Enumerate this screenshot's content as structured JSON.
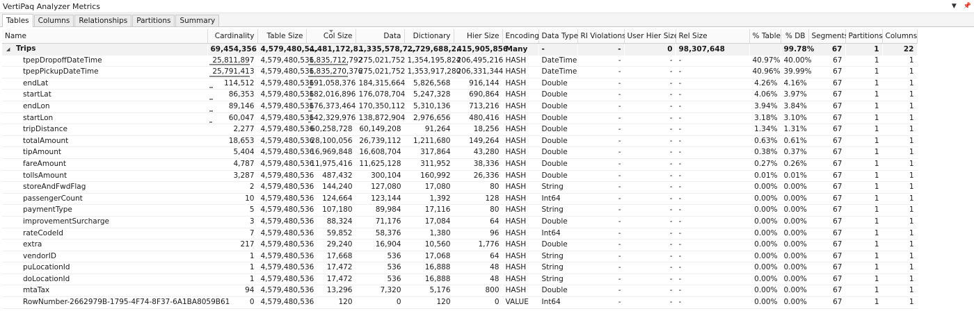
{
  "window": {
    "title": "VertiPaq Analyzer Metrics"
  },
  "tabs": [
    {
      "label": "Tables"
    },
    {
      "label": "Columns"
    },
    {
      "label": "Relationships"
    },
    {
      "label": "Partitions"
    },
    {
      "label": "Summary"
    }
  ],
  "columns": [
    {
      "label": "Name"
    },
    {
      "label": "Cardinality"
    },
    {
      "label": "Table Size"
    },
    {
      "label": "Col Size"
    },
    {
      "label": "Data"
    },
    {
      "label": "Dictionary"
    },
    {
      "label": "Hier Size"
    },
    {
      "label": "Encoding"
    },
    {
      "label": "Data Type"
    },
    {
      "label": "RI Violations"
    },
    {
      "label": "User Hier Size"
    },
    {
      "label": "Rel Size"
    },
    {
      "label": "% Table"
    },
    {
      "label": "% DB"
    },
    {
      "label": "Segments"
    },
    {
      "label": "Partitions"
    },
    {
      "label": "Columns"
    }
  ],
  "group": {
    "toggle": "◢",
    "cells": [
      "Trips",
      "69,454,356",
      "4,579,480,5...",
      "4,481,172,8...",
      "1,335,578,7...",
      "2,729,688,2...",
      "415,905,856",
      "Many",
      "-",
      "-",
      "0",
      "98,307,648",
      "",
      "99.78%",
      "67",
      "1",
      "22"
    ]
  },
  "rows": [
    {
      "cells": [
        "tpepDropoffDateTime",
        "25,811,897",
        "4,579,480,536",
        "1,835,712,792",
        "275,021,752",
        "1,354,195,824",
        "206,495,216",
        "HASH",
        "DateTime",
        "-",
        "-",
        "-",
        "40.97%",
        "40.00%",
        "67",
        "1",
        "1"
      ],
      "bar": 0.41
    },
    {
      "cells": [
        "tpepPickupDateTime",
        "25,791,413",
        "4,579,480,536",
        "1,835,270,376",
        "275,021,752",
        "1,353,917,280",
        "206,331,344",
        "HASH",
        "DateTime",
        "-",
        "-",
        "-",
        "40.96%",
        "39.99%",
        "67",
        "1",
        "1"
      ],
      "bar": 0.41
    },
    {
      "cells": [
        "endLat",
        "114,512",
        "4,579,480,536",
        "191,058,376",
        "184,315,664",
        "5,826,568",
        "916,144",
        "HASH",
        "Double",
        "-",
        "-",
        "-",
        "4.26%",
        "4.16%",
        "67",
        "1",
        "1"
      ],
      "bar": 0.04
    },
    {
      "cells": [
        "startLat",
        "86,353",
        "4,579,480,536",
        "182,016,896",
        "176,078,704",
        "5,247,328",
        "690,864",
        "HASH",
        "Double",
        "-",
        "-",
        "-",
        "4.06%",
        "3.97%",
        "67",
        "1",
        "1"
      ],
      "bar": 0.04
    },
    {
      "cells": [
        "endLon",
        "89,146",
        "4,579,480,536",
        "176,373,464",
        "170,350,112",
        "5,310,136",
        "713,216",
        "HASH",
        "Double",
        "-",
        "-",
        "-",
        "3.94%",
        "3.84%",
        "67",
        "1",
        "1"
      ],
      "bar": 0.04
    },
    {
      "cells": [
        "startLon",
        "60,047",
        "4,579,480,536",
        "142,329,976",
        "138,872,904",
        "2,976,656",
        "480,416",
        "HASH",
        "Double",
        "-",
        "-",
        "-",
        "3.18%",
        "3.10%",
        "67",
        "1",
        "1"
      ],
      "bar": 0.03
    },
    {
      "cells": [
        "tripDistance",
        "2,277",
        "4,579,480,536",
        "60,258,728",
        "60,149,208",
        "91,264",
        "18,256",
        "HASH",
        "Double",
        "-",
        "-",
        "-",
        "1.34%",
        "1.31%",
        "67",
        "1",
        "1"
      ],
      "bar": 0.01
    },
    {
      "cells": [
        "totalAmount",
        "18,653",
        "4,579,480,536",
        "28,100,056",
        "26,739,112",
        "1,211,680",
        "149,264",
        "HASH",
        "Double",
        "-",
        "-",
        "-",
        "0.63%",
        "0.61%",
        "67",
        "1",
        "1"
      ],
      "bar": 0
    },
    {
      "cells": [
        "tipAmount",
        "5,404",
        "4,579,480,536",
        "16,969,848",
        "16,608,704",
        "317,864",
        "43,280",
        "HASH",
        "Double",
        "-",
        "-",
        "-",
        "0.38%",
        "0.37%",
        "67",
        "1",
        "1"
      ],
      "bar": 0
    },
    {
      "cells": [
        "fareAmount",
        "4,787",
        "4,579,480,536",
        "11,975,416",
        "11,625,128",
        "311,952",
        "38,336",
        "HASH",
        "Double",
        "-",
        "-",
        "-",
        "0.27%",
        "0.26%",
        "67",
        "1",
        "1"
      ],
      "bar": 0
    },
    {
      "cells": [
        "tollsAmount",
        "3,287",
        "4,579,480,536",
        "487,432",
        "300,104",
        "160,992",
        "26,336",
        "HASH",
        "Double",
        "-",
        "-",
        "-",
        "0.01%",
        "0.01%",
        "67",
        "1",
        "1"
      ],
      "bar": 0
    },
    {
      "cells": [
        "storeAndFwdFlag",
        "2",
        "4,579,480,536",
        "144,240",
        "127,080",
        "17,080",
        "80",
        "HASH",
        "String",
        "-",
        "-",
        "-",
        "0.00%",
        "0.00%",
        "67",
        "1",
        "1"
      ],
      "bar": 0
    },
    {
      "cells": [
        "passengerCount",
        "10",
        "4,579,480,536",
        "124,664",
        "123,144",
        "1,392",
        "128",
        "HASH",
        "Int64",
        "-",
        "-",
        "-",
        "0.00%",
        "0.00%",
        "67",
        "1",
        "1"
      ],
      "bar": 0
    },
    {
      "cells": [
        "paymentType",
        "5",
        "4,579,480,536",
        "107,180",
        "89,984",
        "17,116",
        "80",
        "HASH",
        "String",
        "-",
        "-",
        "-",
        "0.00%",
        "0.00%",
        "67",
        "1",
        "1"
      ],
      "bar": 0
    },
    {
      "cells": [
        "improvementSurcharge",
        "3",
        "4,579,480,536",
        "88,324",
        "71,176",
        "17,084",
        "64",
        "HASH",
        "Double",
        "-",
        "-",
        "-",
        "0.00%",
        "0.00%",
        "67",
        "1",
        "1"
      ],
      "bar": 0
    },
    {
      "cells": [
        "rateCodeId",
        "7",
        "4,579,480,536",
        "59,852",
        "58,376",
        "1,380",
        "96",
        "HASH",
        "Int64",
        "-",
        "-",
        "-",
        "0.00%",
        "0.00%",
        "67",
        "1",
        "1"
      ],
      "bar": 0
    },
    {
      "cells": [
        "extra",
        "217",
        "4,579,480,536",
        "29,240",
        "16,904",
        "10,560",
        "1,776",
        "HASH",
        "Double",
        "-",
        "-",
        "-",
        "0.00%",
        "0.00%",
        "67",
        "1",
        "1"
      ],
      "bar": 0
    },
    {
      "cells": [
        "vendorID",
        "1",
        "4,579,480,536",
        "17,668",
        "536",
        "17,068",
        "64",
        "HASH",
        "String",
        "-",
        "-",
        "-",
        "0.00%",
        "0.00%",
        "67",
        "1",
        "1"
      ],
      "bar": 0
    },
    {
      "cells": [
        "puLocationId",
        "1",
        "4,579,480,536",
        "17,472",
        "536",
        "16,888",
        "48",
        "HASH",
        "String",
        "-",
        "-",
        "-",
        "0.00%",
        "0.00%",
        "67",
        "1",
        "1"
      ],
      "bar": 0
    },
    {
      "cells": [
        "doLocationId",
        "1",
        "4,579,480,536",
        "17,472",
        "536",
        "16,888",
        "48",
        "HASH",
        "String",
        "-",
        "-",
        "-",
        "0.00%",
        "0.00%",
        "67",
        "1",
        "1"
      ],
      "bar": 0
    },
    {
      "cells": [
        "mtaTax",
        "94",
        "4,579,480,536",
        "13,296",
        "7,320",
        "5,176",
        "800",
        "HASH",
        "Double",
        "-",
        "-",
        "-",
        "0.00%",
        "0.00%",
        "67",
        "1",
        "1"
      ],
      "bar": 0
    },
    {
      "cells": [
        "RowNumber-2662979B-1795-4F74-8F37-6A1BA8059B61",
        "0",
        "4,579,480,536",
        "120",
        "0",
        "120",
        "0",
        "VALUE",
        "Int64",
        "-",
        "-",
        "-",
        "0.00%",
        "0.00%",
        "67",
        "1",
        "1"
      ],
      "bar": 0
    }
  ]
}
